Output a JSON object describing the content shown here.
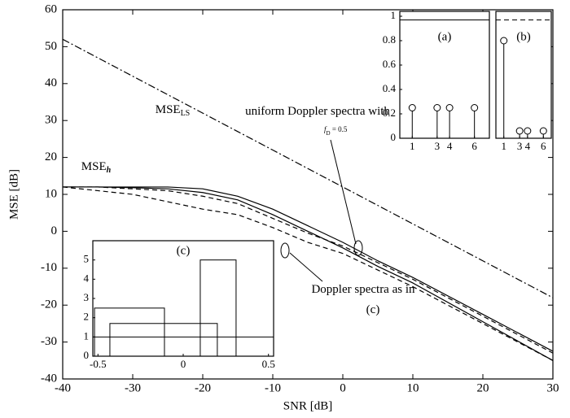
{
  "chart_data": [
    {
      "type": "line",
      "xlabel": "SNR [dB]",
      "ylabel": "MSE [dB]",
      "x": [
        -40,
        -35,
        -30,
        -25,
        -20,
        -15,
        -10,
        -5,
        0,
        5,
        10,
        20,
        30
      ],
      "xlim": [
        -40,
        30
      ],
      "ylim": [
        -40,
        60
      ],
      "xticks": [
        -40,
        -30,
        -20,
        -10,
        0,
        10,
        20,
        30
      ],
      "yticks": [
        -40,
        -30,
        -20,
        -10,
        0,
        10,
        20,
        30,
        40,
        50,
        60
      ],
      "series": [
        {
          "color": "#000000",
          "style": "dashdot",
          "values": [
            52,
            47,
            42,
            37,
            32,
            27,
            22,
            17,
            12,
            7,
            2,
            -8,
            -18
          ]
        },
        {
          "color": "#000000",
          "style": "solid",
          "values": [
            12,
            12,
            12,
            12,
            11.5,
            9.5,
            6,
            1.5,
            -3,
            -8,
            -12.5,
            -22.5,
            -32.5
          ]
        },
        {
          "color": "#000000",
          "style": "solid",
          "values": [
            12,
            12,
            11.8,
            11.5,
            10.5,
            8.5,
            4.5,
            0,
            -4.5,
            -9.5,
            -14,
            -24.5,
            -35
          ]
        },
        {
          "color": "#000000",
          "style": "dashed",
          "values": [
            12,
            12,
            11.5,
            11,
            9.5,
            7.5,
            3.5,
            -0.5,
            -4,
            -8.5,
            -13,
            -23,
            -33
          ]
        },
        {
          "color": "#000000",
          "style": "dashed",
          "values": [
            12,
            11,
            10,
            8,
            6,
            4.5,
            1,
            -3,
            -6,
            -10.5,
            -15,
            -25,
            -35
          ]
        }
      ],
      "annotations": [
        {
          "text": "MSE",
          "subscript": "LS"
        },
        {
          "text": "MSE",
          "subscript": "h"
        },
        {
          "text": "uniform Doppler spectra with"
        },
        {
          "text": "f",
          "subscript": "D",
          "suffix": " = 0.5"
        },
        {
          "text": "Doppler spectra as in"
        },
        {
          "text": "(c)"
        }
      ]
    },
    {
      "type": "stem",
      "label": "(a)",
      "x": [
        1,
        3,
        4,
        6
      ],
      "values": [
        0.25,
        0.25,
        0.25,
        0.25
      ],
      "xlim": [
        0,
        7.2
      ],
      "ylim": [
        0,
        1.04
      ],
      "xticks": [
        1,
        3,
        4,
        6
      ],
      "yticks": [
        0,
        0.2,
        0.4,
        0.6,
        0.8,
        1
      ],
      "hline": 0.97,
      "hline_style": "solid",
      "color": "#000000"
    },
    {
      "type": "stem",
      "label": "(b)",
      "x": [
        1,
        3,
        4,
        6
      ],
      "values": [
        0.8,
        0.06,
        0.06,
        0.06
      ],
      "xlim": [
        0,
        7
      ],
      "ylim": [
        0,
        1.04
      ],
      "xticks": [
        1,
        3,
        4,
        6
      ],
      "hline": 0.97,
      "hline_style": "dashed",
      "color": "#000000"
    },
    {
      "type": "box",
      "label": "(c)",
      "left": [
        -0.52,
        -0.43,
        0.1
      ],
      "right": [
        -0.11,
        0.2,
        0.31
      ],
      "values": [
        2.5,
        1.7,
        5
      ],
      "xlim": [
        -0.53,
        0.53
      ],
      "ylim": [
        0,
        6
      ],
      "xticks": [
        -0.5,
        0,
        0.5
      ],
      "yticks": [
        0,
        1,
        2,
        3,
        4,
        5
      ],
      "hline": 1,
      "hline_style": "solid",
      "color": "#000000"
    }
  ]
}
